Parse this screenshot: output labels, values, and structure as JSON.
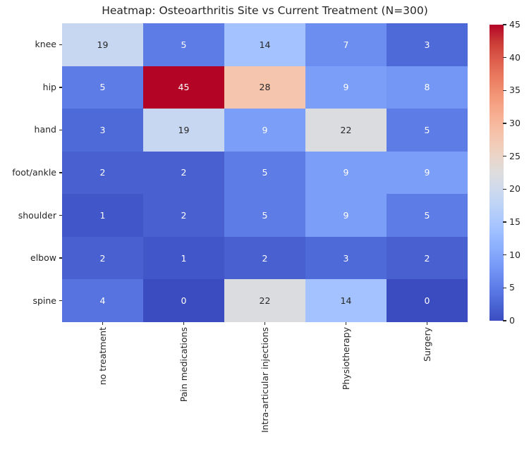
{
  "figure": {
    "background": "#ffffff",
    "text_color": "#262626"
  },
  "chart_data": {
    "type": "heatmap",
    "title": "Heatmap: Osteoarthritis Site vs Current Treatment (N=300)",
    "rows": [
      "knee",
      "hip",
      "hand",
      "foot/ankle",
      "shoulder",
      "elbow",
      "spine"
    ],
    "columns": [
      "no treatment",
      "Pain medications",
      "Intra-articular injections",
      "Physiotherapy",
      "Surgery"
    ],
    "values": [
      [
        19,
        5,
        14,
        7,
        3
      ],
      [
        5,
        45,
        28,
        9,
        8
      ],
      [
        3,
        19,
        9,
        22,
        5
      ],
      [
        2,
        2,
        5,
        9,
        9
      ],
      [
        1,
        2,
        5,
        9,
        5
      ],
      [
        2,
        1,
        2,
        3,
        2
      ],
      [
        4,
        0,
        22,
        14,
        0
      ]
    ],
    "vmin": 0,
    "vmax": 45,
    "colormap": "coolwarm",
    "colormap_anchors": [
      "#3b4cc0",
      "#4d68d7",
      "#6282ea",
      "#779af7",
      "#8db0fe",
      "#a3c2ff",
      "#b8d0f9",
      "#ccd9ee",
      "#dddddd",
      "#ecd3c5",
      "#f5c4ad",
      "#f7b194",
      "#f49a7b",
      "#ec7f63",
      "#de604d",
      "#cb3e38",
      "#b40426"
    ],
    "annotation_colors": {
      "light": "#ffffff",
      "dark": "#262626"
    },
    "colorbar_ticks": [
      0,
      5,
      10,
      15,
      20,
      25,
      30,
      35,
      40,
      45
    ],
    "colorbar_position": "right",
    "x_tick_rotation": 90,
    "grid": false,
    "annotated": true
  }
}
